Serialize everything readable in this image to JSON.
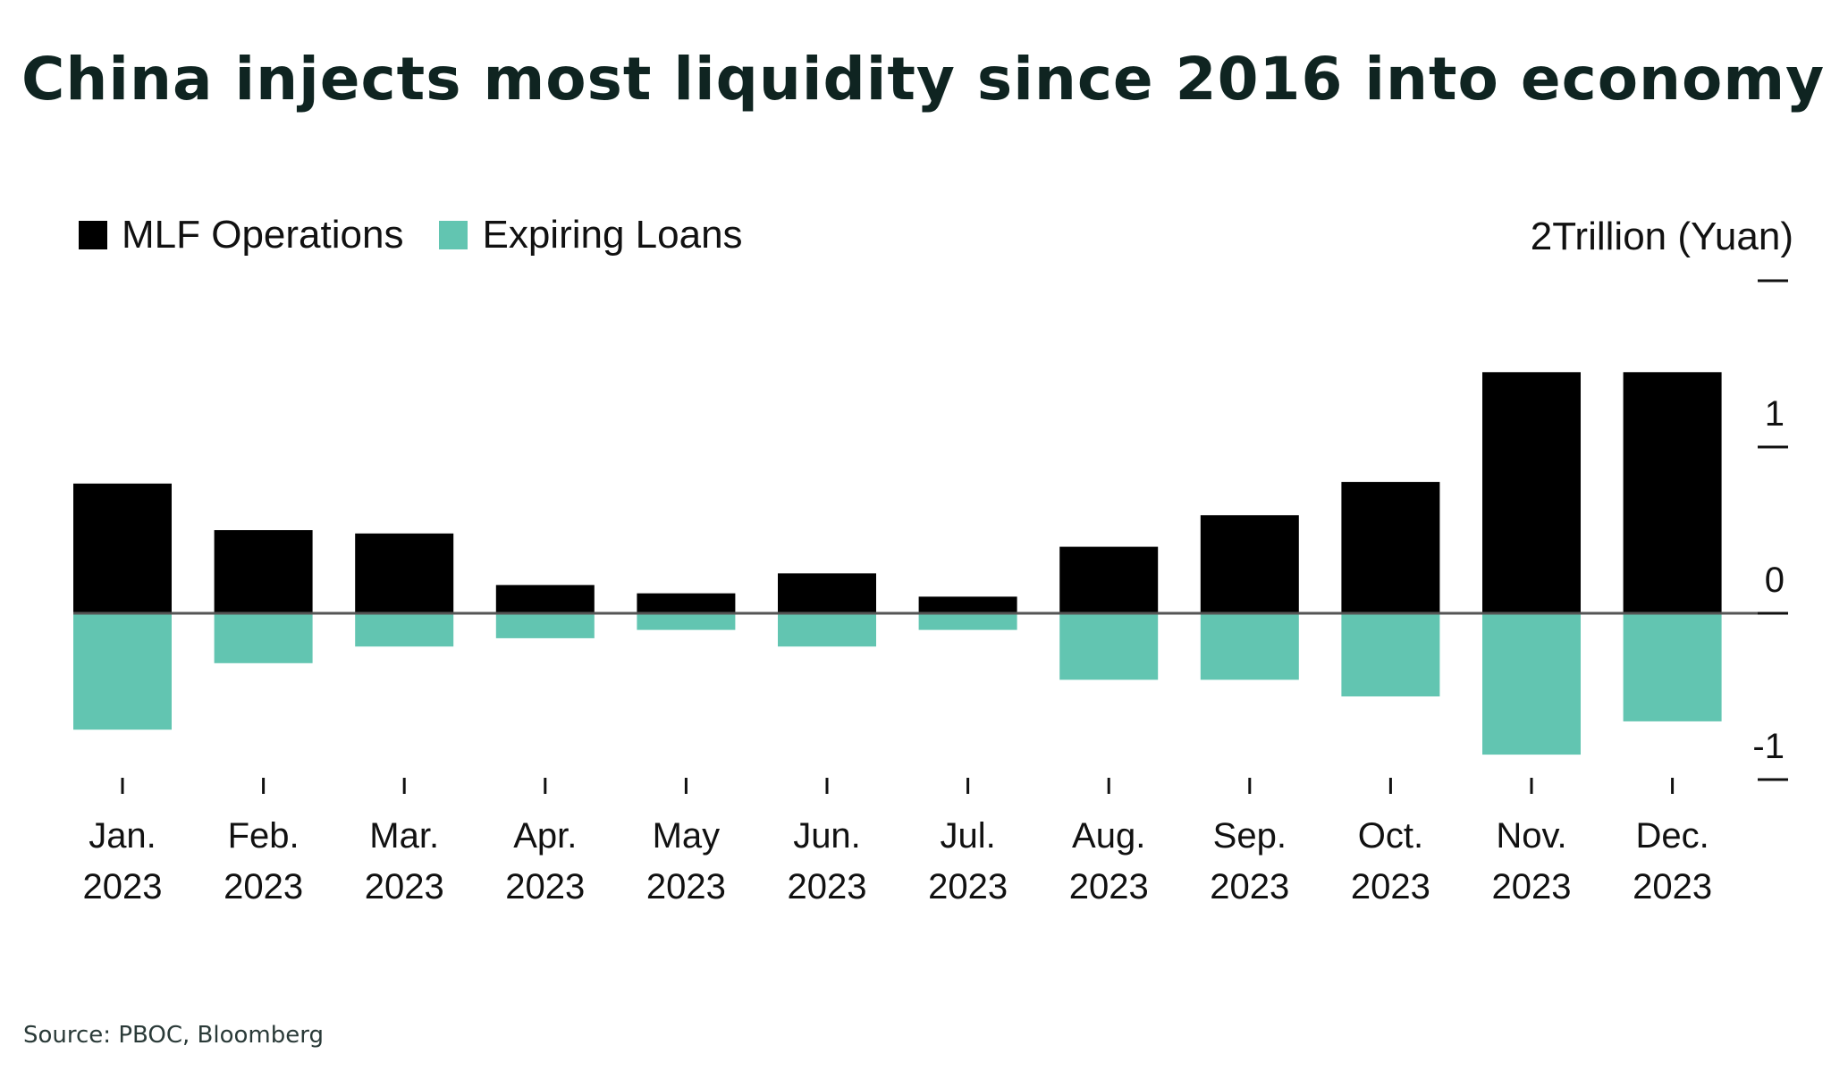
{
  "title": "China injects most liquidity since 2016 into economy",
  "source": "Source: PBOC, Bloomberg",
  "unit_label": "2Trillion (Yuan)",
  "colors": {
    "mlf": "#000000",
    "expiring": "#62c5b1",
    "title": "#0f2421",
    "zero_line": "#555555"
  },
  "chart_data": {
    "type": "bar",
    "categories": [
      [
        "Jan.",
        "2023"
      ],
      [
        "Feb.",
        "2023"
      ],
      [
        "Mar.",
        "2023"
      ],
      [
        "Apr.",
        "2023"
      ],
      [
        "May",
        "2023"
      ],
      [
        "Jun.",
        "2023"
      ],
      [
        "Jul.",
        "2023"
      ],
      [
        "Aug.",
        "2023"
      ],
      [
        "Sep.",
        "2023"
      ],
      [
        "Oct.",
        "2023"
      ],
      [
        "Nov.",
        "2023"
      ],
      [
        "Dec.",
        "2023"
      ]
    ],
    "series": [
      {
        "name": "MLF Operations",
        "values": [
          0.78,
          0.5,
          0.48,
          0.17,
          0.12,
          0.24,
          0.1,
          0.4,
          0.59,
          0.79,
          1.45,
          1.45
        ]
      },
      {
        "name": "Expiring Loans",
        "values": [
          -0.7,
          -0.3,
          -0.2,
          -0.15,
          -0.1,
          -0.2,
          -0.1,
          -0.4,
          -0.4,
          -0.5,
          -0.85,
          -0.65
        ]
      }
    ],
    "y_ticks": [
      "1",
      "0",
      "-1"
    ],
    "ylim": [
      -1,
      2
    ],
    "legend_position": "top-left",
    "grid": false
  }
}
